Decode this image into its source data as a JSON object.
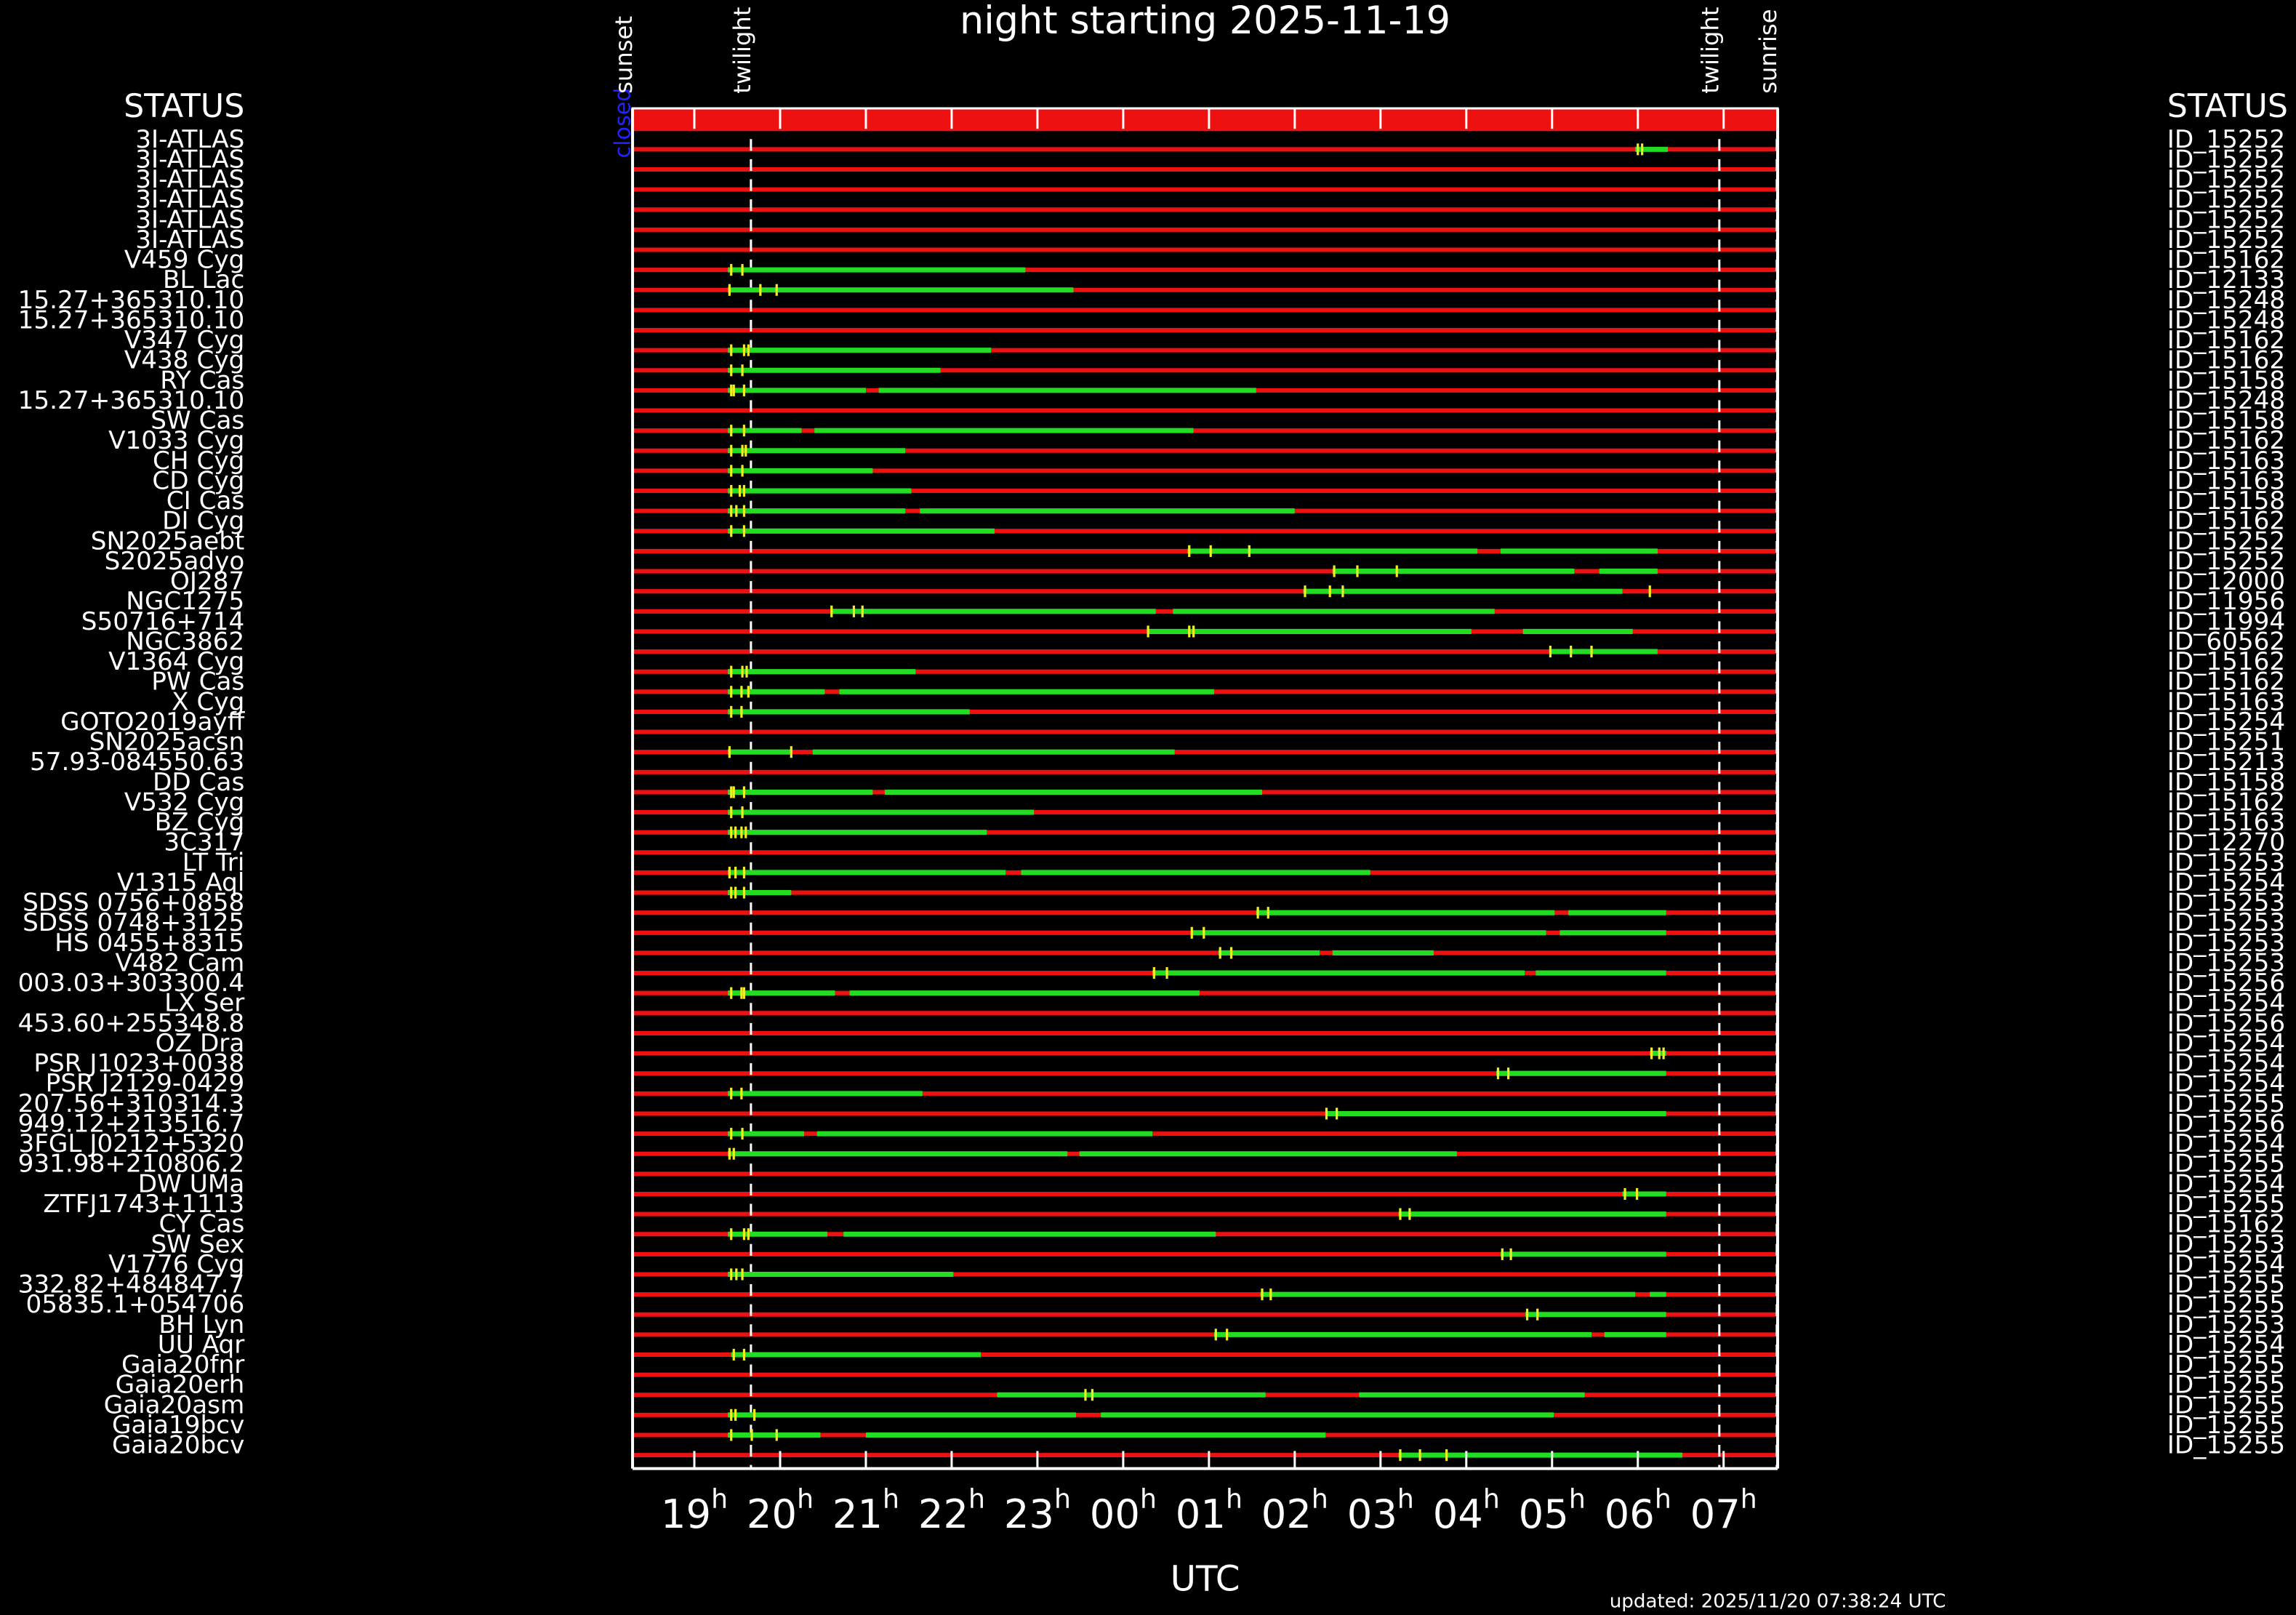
{
  "chart_data": {
    "type": "timeline",
    "title": "night starting 2025-11-19",
    "xlabel": "UTC",
    "footer": "updated: 2025/11/20 07:38:24 UTC",
    "status_headers": [
      "STATUS",
      "STATUS"
    ],
    "status": "closed",
    "xlim": [
      18.28,
      31.63
    ],
    "xticks": [
      {
        "value": 19,
        "label": "19h"
      },
      {
        "value": 20,
        "label": "20h"
      },
      {
        "value": 21,
        "label": "21h"
      },
      {
        "value": 22,
        "label": "22h"
      },
      {
        "value": 23,
        "label": "23h"
      },
      {
        "value": 24,
        "label": "00h"
      },
      {
        "value": 25,
        "label": "01h"
      },
      {
        "value": 26,
        "label": "02h"
      },
      {
        "value": 27,
        "label": "03h"
      },
      {
        "value": 28,
        "label": "04h"
      },
      {
        "value": 29,
        "label": "05h"
      },
      {
        "value": 30,
        "label": "06h"
      },
      {
        "value": 31,
        "label": "07h"
      }
    ],
    "events": [
      {
        "label": "sunset",
        "x": 18.28
      },
      {
        "label": "twilight",
        "x": 19.66
      },
      {
        "label": "twilight",
        "x": 30.95
      },
      {
        "label": "sunrise",
        "x": 31.62
      }
    ],
    "colors": {
      "row": "#ee1111",
      "window": "#22dd22",
      "marker": "#eeee22",
      "status": "#2222ff"
    },
    "rows": [
      {
        "name": "3I-ATLAS",
        "id": "ID_15252",
        "windows": [
          [
            29.97,
            30.35
          ]
        ],
        "markers": [
          30.0,
          30.05
        ]
      },
      {
        "name": "3I-ATLAS",
        "id": "ID_15252",
        "windows": [],
        "markers": []
      },
      {
        "name": "3I-ATLAS",
        "id": "ID_15252",
        "windows": [],
        "markers": []
      },
      {
        "name": "3I-ATLAS",
        "id": "ID_15252",
        "windows": [],
        "markers": []
      },
      {
        "name": "3I-ATLAS",
        "id": "ID_15252",
        "windows": [],
        "markers": []
      },
      {
        "name": "3I-ATLAS",
        "id": "ID_15252",
        "windows": [],
        "markers": []
      },
      {
        "name": "V459 Cyg",
        "id": "ID_15162",
        "windows": [
          [
            19.39,
            22.86
          ]
        ],
        "markers": [
          19.43,
          19.56
        ]
      },
      {
        "name": "BL Lac",
        "id": "ID_12133",
        "windows": [
          [
            19.39,
            23.42
          ]
        ],
        "markers": [
          19.41,
          19.77,
          19.96
        ]
      },
      {
        "name": "15.27+365310.10",
        "id": "ID_15248",
        "windows": [],
        "markers": []
      },
      {
        "name": "15.27+365310.10",
        "id": "ID_15248",
        "windows": [],
        "markers": []
      },
      {
        "name": "V347 Cyg",
        "id": "ID_15162",
        "windows": [
          [
            19.39,
            22.46
          ]
        ],
        "markers": [
          19.43,
          19.58,
          19.63
        ]
      },
      {
        "name": "V438 Cyg",
        "id": "ID_15162",
        "windows": [
          [
            19.39,
            21.87
          ]
        ],
        "markers": [
          19.43,
          19.56
        ]
      },
      {
        "name": "RY Cas",
        "id": "ID_15158",
        "windows": [
          [
            19.39,
            21.0
          ],
          [
            21.15,
            25.55
          ]
        ],
        "markers": [
          19.43,
          19.46,
          19.58
        ]
      },
      {
        "name": "15.27+365310.10",
        "id": "ID_15248",
        "windows": [],
        "markers": []
      },
      {
        "name": "SW Cas",
        "id": "ID_15158",
        "windows": [
          [
            19.39,
            20.25
          ],
          [
            20.4,
            24.82
          ]
        ],
        "markers": [
          19.43,
          19.58
        ]
      },
      {
        "name": "V1033 Cyg",
        "id": "ID_15162",
        "windows": [
          [
            19.39,
            21.46
          ]
        ],
        "markers": [
          19.43,
          19.56,
          19.6
        ]
      },
      {
        "name": "CH Cyg",
        "id": "ID_15163",
        "windows": [
          [
            19.39,
            21.08
          ]
        ],
        "markers": [
          19.43,
          19.56
        ]
      },
      {
        "name": "CD Cyg",
        "id": "ID_15163",
        "windows": [
          [
            19.39,
            21.53
          ]
        ],
        "markers": [
          19.43,
          19.53,
          19.58
        ]
      },
      {
        "name": "CI Cas",
        "id": "ID_15158",
        "windows": [
          [
            19.39,
            21.46
          ],
          [
            21.63,
            26.0
          ]
        ],
        "markers": [
          19.43,
          19.49,
          19.58
        ]
      },
      {
        "name": "DI Cyg",
        "id": "ID_15162",
        "windows": [
          [
            19.39,
            22.5
          ]
        ],
        "markers": [
          19.43,
          19.58
        ]
      },
      {
        "name": "SN2025aebt",
        "id": "ID_15252",
        "windows": [
          [
            24.75,
            28.13
          ],
          [
            28.4,
            30.23
          ]
        ],
        "markers": [
          24.77,
          25.02,
          25.47
        ]
      },
      {
        "name": "S2025adyo",
        "id": "ID_15252",
        "windows": [
          [
            26.44,
            29.26
          ],
          [
            29.55,
            30.23
          ]
        ],
        "markers": [
          26.46,
          26.73,
          27.19
        ]
      },
      {
        "name": "OJ287",
        "id": "ID_12000",
        "windows": [
          [
            26.1,
            29.82
          ]
        ],
        "markers": [
          26.12,
          26.41,
          26.56,
          30.14
        ]
      },
      {
        "name": "NGC1275",
        "id": "ID_11956",
        "windows": [
          [
            20.59,
            24.38
          ],
          [
            24.58,
            28.33
          ]
        ],
        "markers": [
          20.6,
          20.86,
          20.96
        ]
      },
      {
        "name": "S50716+714",
        "id": "ID_11994",
        "windows": [
          [
            24.29,
            28.06
          ],
          [
            28.66,
            29.94
          ]
        ],
        "markers": [
          24.29,
          24.77,
          24.82
        ]
      },
      {
        "name": "NGC3862",
        "id": "ID_60562",
        "windows": [
          [
            28.98,
            30.23
          ]
        ],
        "markers": [
          28.98,
          29.22,
          29.46
        ]
      },
      {
        "name": "V1364 Cyg",
        "id": "ID_15162",
        "windows": [
          [
            19.39,
            21.58
          ]
        ],
        "markers": [
          19.43,
          19.56,
          19.61
        ]
      },
      {
        "name": "PW Cas",
        "id": "ID_15162",
        "windows": [
          [
            19.39,
            20.52
          ],
          [
            20.69,
            25.06
          ]
        ],
        "markers": [
          19.43,
          19.55,
          19.63
        ]
      },
      {
        "name": "X Cyg",
        "id": "ID_15163",
        "windows": [
          [
            19.39,
            22.21
          ]
        ],
        "markers": [
          19.43,
          19.55
        ]
      },
      {
        "name": "GOTO2019ayff",
        "id": "ID_15254",
        "windows": [],
        "markers": []
      },
      {
        "name": "SN2025acsn",
        "id": "ID_15251",
        "windows": [
          [
            19.39,
            20.13
          ],
          [
            20.38,
            24.6
          ]
        ],
        "markers": [
          19.41,
          20.13
        ]
      },
      {
        "name": "57.93-084550.63",
        "id": "ID_15213",
        "windows": [],
        "markers": []
      },
      {
        "name": "DD Cas",
        "id": "ID_15158",
        "windows": [
          [
            19.39,
            21.08
          ],
          [
            21.22,
            25.62
          ]
        ],
        "markers": [
          19.43,
          19.46,
          19.58
        ]
      },
      {
        "name": "V532 Cyg",
        "id": "ID_15162",
        "windows": [
          [
            19.39,
            22.96
          ]
        ],
        "markers": [
          19.43,
          19.56
        ]
      },
      {
        "name": "BZ Cyg",
        "id": "ID_15163",
        "windows": [
          [
            19.39,
            22.41
          ]
        ],
        "markers": [
          19.43,
          19.48,
          19.55,
          19.6
        ]
      },
      {
        "name": "3C317",
        "id": "ID_12270",
        "windows": [],
        "markers": []
      },
      {
        "name": "LT Tri",
        "id": "ID_15253",
        "windows": [
          [
            19.39,
            22.63
          ],
          [
            22.81,
            26.88
          ]
        ],
        "markers": [
          19.41,
          19.48,
          19.58
        ]
      },
      {
        "name": "V1315 Aql",
        "id": "ID_15254",
        "windows": [
          [
            19.39,
            20.13
          ]
        ],
        "markers": [
          19.43,
          19.48,
          19.58
        ]
      },
      {
        "name": "SDSS 0756+0858",
        "id": "ID_15253",
        "windows": [
          [
            25.55,
            29.03
          ],
          [
            29.19,
            30.33
          ]
        ],
        "markers": [
          25.57,
          25.69
        ]
      },
      {
        "name": "SDSS 0748+3125",
        "id": "ID_15253",
        "windows": [
          [
            24.79,
            28.93
          ],
          [
            29.09,
            30.33
          ]
        ],
        "markers": [
          24.8,
          24.94
        ]
      },
      {
        "name": "HS 0455+8315",
        "id": "ID_15253",
        "windows": [
          [
            25.11,
            26.29
          ],
          [
            26.44,
            27.62
          ]
        ],
        "markers": [
          25.13,
          25.26
        ]
      },
      {
        "name": "V482 Cam",
        "id": "ID_15253",
        "windows": [
          [
            24.34,
            28.68
          ],
          [
            28.81,
            30.33
          ]
        ],
        "markers": [
          24.36,
          24.51
        ]
      },
      {
        "name": "003.03+303300.4",
        "id": "ID_15256",
        "windows": [
          [
            19.39,
            20.64
          ],
          [
            20.81,
            24.89
          ]
        ],
        "markers": [
          19.43,
          19.55,
          19.58
        ]
      },
      {
        "name": "LX Ser",
        "id": "ID_15254",
        "windows": [],
        "markers": []
      },
      {
        "name": "453.60+255348.8",
        "id": "ID_15256",
        "windows": [],
        "markers": []
      },
      {
        "name": "OZ Dra",
        "id": "ID_15254",
        "windows": [
          [
            30.14,
            30.33
          ]
        ],
        "markers": [
          30.16,
          30.25,
          30.3
        ]
      },
      {
        "name": "PSR J1023+0038",
        "id": "ID_15254",
        "windows": [
          [
            28.35,
            30.33
          ]
        ],
        "markers": [
          28.37,
          28.49
        ]
      },
      {
        "name": "PSR J2129-0429",
        "id": "ID_15254",
        "windows": [
          [
            19.39,
            21.66
          ]
        ],
        "markers": [
          19.43,
          19.55
        ]
      },
      {
        "name": "207.56+310314.3",
        "id": "ID_15255",
        "windows": [
          [
            26.36,
            30.33
          ]
        ],
        "markers": [
          26.37,
          26.49
        ]
      },
      {
        "name": "949.12+213516.7",
        "id": "ID_15256",
        "windows": [
          [
            19.39,
            20.28
          ],
          [
            20.43,
            24.34
          ]
        ],
        "markers": [
          19.43,
          19.56
        ]
      },
      {
        "name": "3FGL J0212+5320",
        "id": "ID_15254",
        "windows": [
          [
            19.39,
            23.35
          ],
          [
            23.49,
            27.89
          ]
        ],
        "markers": [
          19.41,
          19.46
        ]
      },
      {
        "name": "931.98+210806.2",
        "id": "ID_15255",
        "windows": [],
        "markers": []
      },
      {
        "name": "DW UMa",
        "id": "ID_15254",
        "windows": [
          [
            29.82,
            30.33
          ]
        ],
        "markers": [
          29.85,
          29.99
        ]
      },
      {
        "name": "ZTFJ1743+1113",
        "id": "ID_15255",
        "windows": [
          [
            27.21,
            30.33
          ]
        ],
        "markers": [
          27.23,
          27.34
        ]
      },
      {
        "name": "CY Cas",
        "id": "ID_15162",
        "windows": [
          [
            19.39,
            20.55
          ],
          [
            20.74,
            25.08
          ]
        ],
        "markers": [
          19.43,
          19.58,
          19.63
        ]
      },
      {
        "name": "SW Sex",
        "id": "ID_15253",
        "windows": [
          [
            28.4,
            30.33
          ]
        ],
        "markers": [
          28.42,
          28.52
        ]
      },
      {
        "name": "V1776 Cyg",
        "id": "ID_15254",
        "windows": [
          [
            19.39,
            22.02
          ]
        ],
        "markers": [
          19.43,
          19.49,
          19.56
        ]
      },
      {
        "name": "332.82+484847.7",
        "id": "ID_15255",
        "windows": [
          [
            25.6,
            29.97
          ],
          [
            30.14,
            30.33
          ]
        ],
        "markers": [
          25.62,
          25.72
        ]
      },
      {
        "name": "05835.1+054706",
        "id": "ID_15255",
        "windows": [
          [
            28.69,
            30.33
          ]
        ],
        "markers": [
          28.71,
          28.83
        ]
      },
      {
        "name": "BH Lyn",
        "id": "ID_15253",
        "windows": [
          [
            25.06,
            29.46
          ],
          [
            29.61,
            30.33
          ]
        ],
        "markers": [
          25.08,
          25.21
        ]
      },
      {
        "name": "UU Aqr",
        "id": "ID_15254",
        "windows": [
          [
            19.43,
            22.34
          ]
        ],
        "markers": [
          19.46,
          19.58
        ]
      },
      {
        "name": "Gaia20fnr",
        "id": "ID_15255",
        "windows": [],
        "markers": []
      },
      {
        "name": "Gaia20erh",
        "id": "ID_15255",
        "windows": [
          [
            22.53,
            25.66
          ],
          [
            26.75,
            29.38
          ]
        ],
        "markers": [
          23.56,
          23.64
        ]
      },
      {
        "name": "Gaia20asm",
        "id": "ID_15255",
        "windows": [
          [
            19.39,
            23.45
          ],
          [
            23.74,
            29.02
          ]
        ],
        "markers": [
          19.43,
          19.48,
          19.7
        ]
      },
      {
        "name": "Gaia19bcv",
        "id": "ID_15255",
        "windows": [
          [
            19.39,
            20.47
          ],
          [
            21.0,
            26.36
          ]
        ],
        "markers": [
          19.43,
          19.67,
          19.96
        ]
      },
      {
        "name": "Gaia20bcv",
        "id": "ID_15255",
        "windows": [
          [
            27.21,
            30.52
          ]
        ],
        "markers": [
          27.23,
          27.46,
          27.77
        ]
      }
    ]
  }
}
